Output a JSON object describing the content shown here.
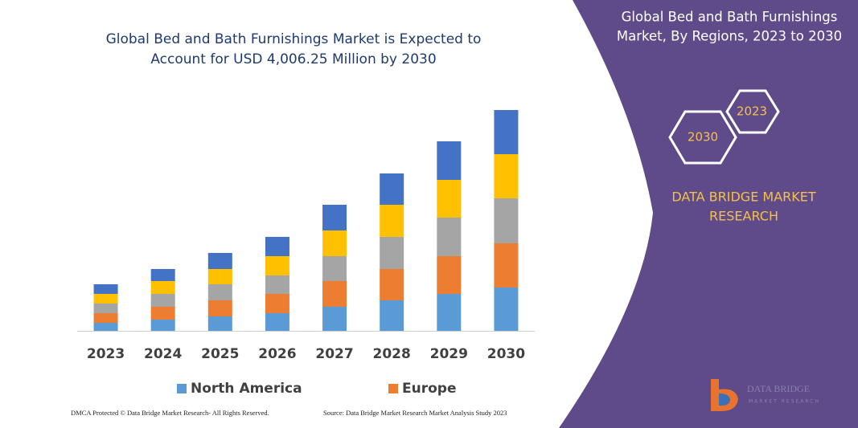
{
  "chart_data": {
    "type": "stacked_bar",
    "title": [
      "Global Bed and Bath Furnishings Market is Expected to",
      "Account for USD 4,006.25 Million by 2030"
    ],
    "categories": [
      "2023",
      "2024",
      "2025",
      "2026",
      "2027",
      "2028",
      "2029",
      "2030"
    ],
    "series": [
      {
        "name": "North America",
        "color": "#5b9bd5",
        "values": [
          10,
          14,
          18,
          22,
          30,
          38,
          46,
          54
        ]
      },
      {
        "name": "Europe",
        "color": "#ed7d31",
        "values": [
          12,
          16,
          20,
          24,
          32,
          39,
          47,
          55
        ]
      },
      {
        "color": "#a5a5a5",
        "values": [
          12,
          16,
          20,
          23,
          31,
          40,
          48,
          56
        ]
      },
      {
        "color": "#ffc000",
        "values": [
          12,
          16,
          19,
          24,
          32,
          40,
          47,
          55
        ]
      },
      {
        "color": "#4472c4",
        "values": [
          12,
          15,
          20,
          24,
          32,
          39,
          48,
          55
        ]
      }
    ]
  },
  "footer": {
    "left": "DMCA Protected © Data Bridge Market Research- All Rights Reserved.",
    "right": "Source: Data Bridge Market Research Market Analysis Study 2023"
  },
  "panel": {
    "title": [
      "Global Bed and Bath Furnishings",
      "Market, By Regions, 2023 to 2030"
    ],
    "hexagons": [
      "2023",
      "2030"
    ],
    "brand": [
      "DATA BRIDGE MARKET",
      "RESEARCH"
    ],
    "logo": [
      "DATA BRIDGE",
      "MARKET RESEARCH"
    ]
  }
}
